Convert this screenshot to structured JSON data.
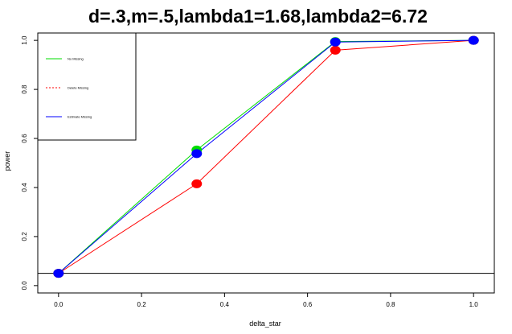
{
  "chart_data": {
    "type": "line",
    "title": "d=.3,m=.5,lambda1=1.68,lambda2=6.72",
    "xlabel": "delta_star",
    "ylabel": "power",
    "xlim": [
      -0.05,
      1.05
    ],
    "ylim": [
      -0.03,
      1.03
    ],
    "xticks": [
      0.0,
      0.2,
      0.4,
      0.6,
      0.8,
      1.0
    ],
    "xtick_labels": [
      "0.0",
      "0.2",
      "0.4",
      "0.6",
      "0.8",
      "1.0"
    ],
    "yticks": [
      0.0,
      0.2,
      0.4,
      0.6,
      0.8,
      1.0
    ],
    "ytick_labels": [
      "0.0",
      "0.2",
      "0.4",
      "0.6",
      "0.8",
      "1.0"
    ],
    "x": [
      0.0,
      0.333,
      0.667,
      1.0
    ],
    "hline": 0.05,
    "legend_position": "top-left",
    "grid": false,
    "series": [
      {
        "name": "No Missing",
        "values": [
          0.05,
          0.553,
          0.995,
          1.0
        ],
        "color": "#00dd00",
        "line_style": "solid"
      },
      {
        "name": "Delete Missing",
        "values": [
          0.05,
          0.415,
          0.96,
          1.0
        ],
        "color": "#ff0000",
        "line_style": "dashed"
      },
      {
        "name": "Estimate Missing",
        "values": [
          0.05,
          0.538,
          0.993,
          1.0
        ],
        "color": "#0000ff",
        "line_style": "solid"
      }
    ]
  }
}
